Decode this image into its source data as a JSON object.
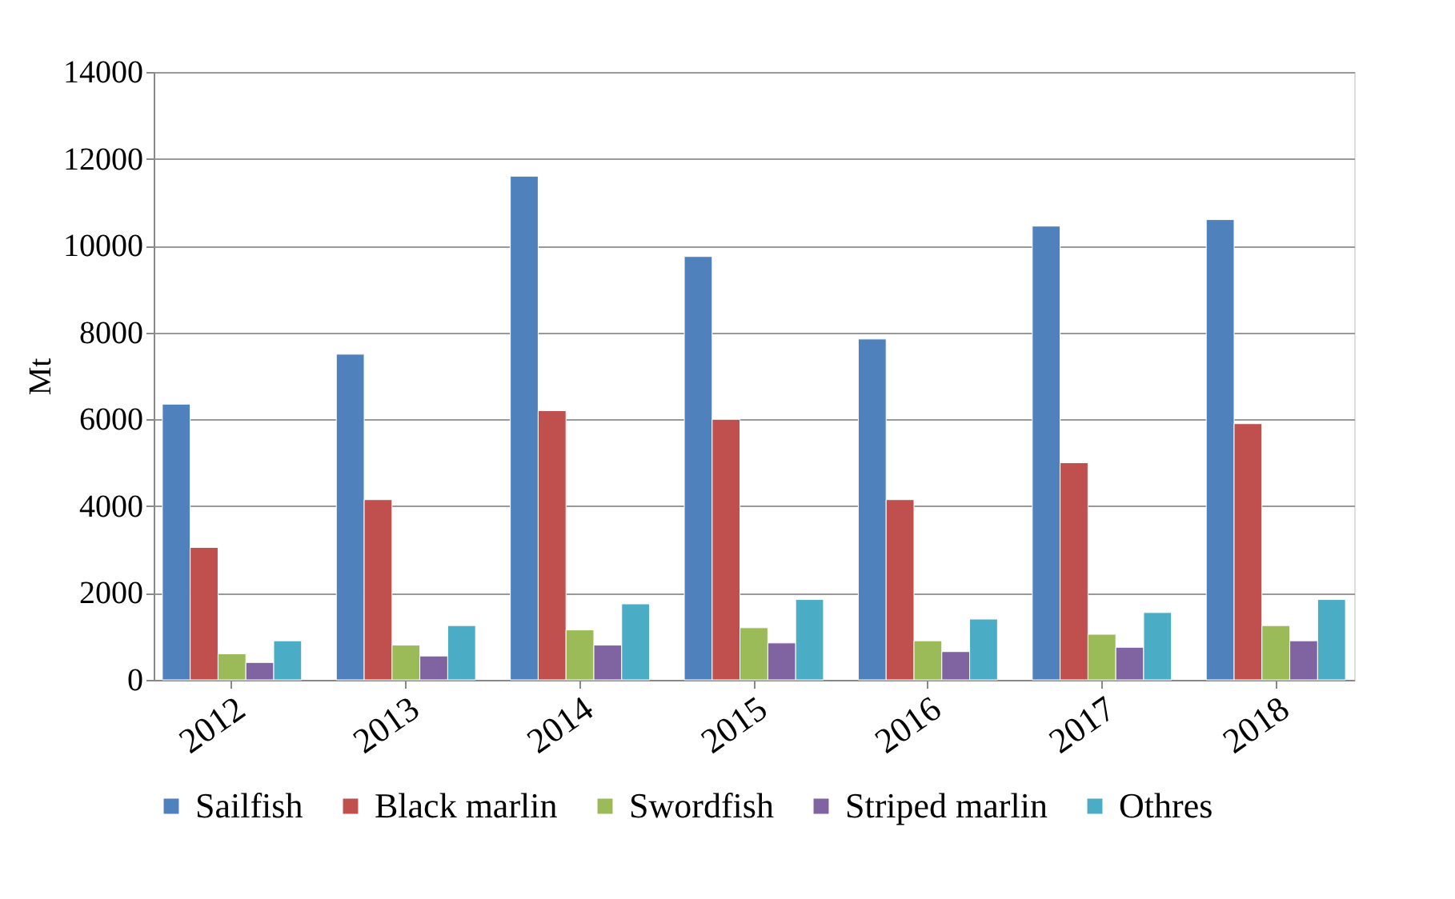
{
  "chart_data": {
    "type": "bar",
    "ylabel": "Mt",
    "categories": [
      "2012",
      "2013",
      "2014",
      "2015",
      "2016",
      "2017",
      "2018"
    ],
    "series": [
      {
        "name": "Sailfish",
        "color": "#4f81bd",
        "values": [
          6350,
          7500,
          11600,
          9750,
          7850,
          10450,
          10600
        ]
      },
      {
        "name": "Black marlin",
        "color": "#c0504d",
        "values": [
          3050,
          4150,
          6200,
          6000,
          4150,
          5000,
          5900
        ]
      },
      {
        "name": "Swordfish",
        "color": "#9bbb59",
        "values": [
          600,
          800,
          1150,
          1200,
          900,
          1050,
          1250
        ]
      },
      {
        "name": "Striped marlin",
        "color": "#8064a2",
        "values": [
          400,
          550,
          800,
          850,
          650,
          750,
          900
        ]
      },
      {
        "name": "Othres",
        "color": "#4bacc6",
        "values": [
          900,
          1250,
          1750,
          1850,
          1400,
          1550,
          1850
        ]
      }
    ],
    "ylim": [
      0,
      14000
    ],
    "yticks": [
      0,
      2000,
      4000,
      6000,
      8000,
      10000,
      12000,
      14000
    ],
    "grid": "y",
    "legend": "bottom"
  }
}
